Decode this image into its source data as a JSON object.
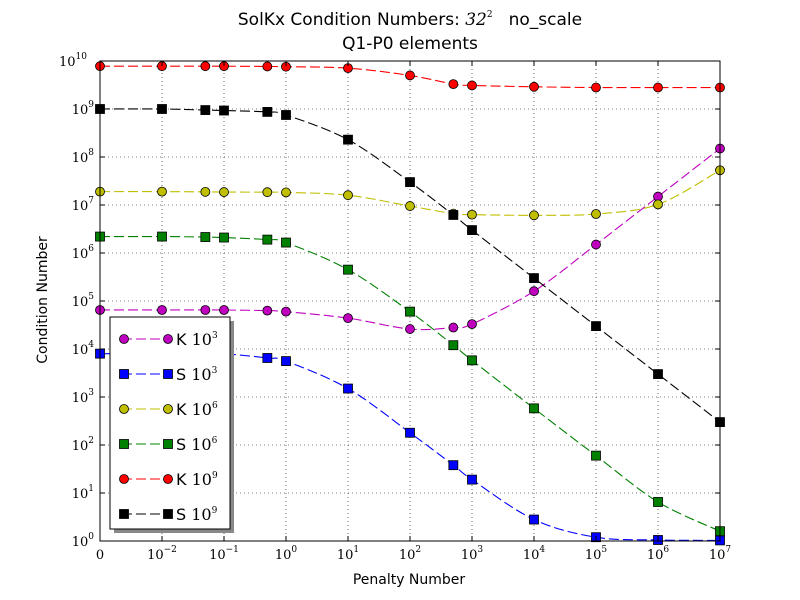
{
  "chart_data": {
    "type": "line",
    "title_line1": "SolKx Condition Numbers: 32² no_scale",
    "title_prefix": "SolKx Condition Numbers: ",
    "title_base": "32",
    "title_exp": "2",
    "title_suffix": "no_scale",
    "title_line2": "Q1-P0 elements",
    "xlabel": "Penalty Number",
    "ylabel": "Condition Number",
    "x_scale": "symlog",
    "y_scale": "log",
    "xlim": [
      0,
      10000000
    ],
    "ylim": [
      1,
      10000000000
    ],
    "grid": true,
    "legend_position": "lower-left",
    "x_ticks": [
      {
        "value": 0,
        "base": "0",
        "exp": ""
      },
      {
        "value": 0.01,
        "base": "10",
        "exp": "−2"
      },
      {
        "value": 0.1,
        "base": "10",
        "exp": "−1"
      },
      {
        "value": 1,
        "base": "10",
        "exp": "0"
      },
      {
        "value": 10,
        "base": "10",
        "exp": "1"
      },
      {
        "value": 100,
        "base": "10",
        "exp": "2"
      },
      {
        "value": 1000,
        "base": "10",
        "exp": "3"
      },
      {
        "value": 10000,
        "base": "10",
        "exp": "4"
      },
      {
        "value": 100000,
        "base": "10",
        "exp": "5"
      },
      {
        "value": 1000000,
        "base": "10",
        "exp": "6"
      },
      {
        "value": 10000000,
        "base": "10",
        "exp": "7"
      }
    ],
    "y_ticks": [
      {
        "value": 1,
        "base": "10",
        "exp": "0"
      },
      {
        "value": 10,
        "base": "10",
        "exp": "1"
      },
      {
        "value": 100,
        "base": "10",
        "exp": "2"
      },
      {
        "value": 1000,
        "base": "10",
        "exp": "3"
      },
      {
        "value": 10000,
        "base": "10",
        "exp": "4"
      },
      {
        "value": 100000,
        "base": "10",
        "exp": "5"
      },
      {
        "value": 1000000,
        "base": "10",
        "exp": "6"
      },
      {
        "value": 10000000,
        "base": "10",
        "exp": "7"
      },
      {
        "value": 100000000,
        "base": "10",
        "exp": "8"
      },
      {
        "value": 1000000000,
        "base": "10",
        "exp": "9"
      },
      {
        "value": 10000000000,
        "base": "10",
        "exp": "10"
      }
    ],
    "x": [
      0,
      0.01,
      0.05,
      0.1,
      0.5,
      1,
      10,
      100,
      500,
      1000,
      10000,
      100000,
      1000000,
      10000000
    ],
    "series": [
      {
        "name": "K 10³",
        "label": "K",
        "exp": "3",
        "color": "#bf00bf",
        "marker": "circle",
        "dash": "10,4",
        "values": [
          65000,
          65000,
          65000,
          65000,
          63000,
          60000,
          44000,
          26000,
          28000,
          33000,
          160000,
          1500000,
          15000000,
          150000000
        ]
      },
      {
        "name": "S 10³",
        "label": "S",
        "exp": "3",
        "color": "#0000ff",
        "marker": "square",
        "dash": "10,4",
        "values": [
          8000,
          8000,
          8000,
          8000,
          6500,
          5600,
          1500,
          180,
          38,
          19,
          2.8,
          1.2,
          1.05,
          1.03
        ]
      },
      {
        "name": "K 10⁶",
        "label": "K",
        "exp": "6",
        "color": "#bfbf00",
        "marker": "circle",
        "dash": "10,4",
        "values": [
          19000000,
          19000000,
          18800000,
          18600000,
          18500000,
          18300000,
          16000000,
          9500000,
          6600000,
          6300000,
          6100000,
          6500000,
          10300000,
          53000000
        ]
      },
      {
        "name": "S 10⁶",
        "label": "S",
        "exp": "6",
        "color": "#008000",
        "marker": "square",
        "dash": "10,4",
        "values": [
          2200000,
          2200000,
          2150000,
          2100000,
          1900000,
          1650000,
          450000,
          60000,
          12000,
          5800,
          580,
          60,
          6.5,
          1.6
        ]
      },
      {
        "name": "K 10⁹",
        "label": "K",
        "exp": "9",
        "color": "#ff0000",
        "marker": "circle",
        "dash": "10,4",
        "values": [
          7800000000,
          7800000000,
          7800000000,
          7800000000,
          7700000000,
          7600000000,
          7100000000,
          5000000000,
          3300000000,
          3100000000,
          2900000000,
          2800000000,
          2800000000,
          2800000000
        ]
      },
      {
        "name": "S 10⁹",
        "label": "S",
        "exp": "9",
        "color": "#000000",
        "marker": "square",
        "dash": "10,4",
        "values": [
          1000000000,
          1000000000,
          950000000,
          930000000,
          870000000,
          750000000,
          230000000,
          30000000,
          6200000,
          3000000,
          300000,
          30000,
          3000,
          300
        ]
      }
    ]
  }
}
